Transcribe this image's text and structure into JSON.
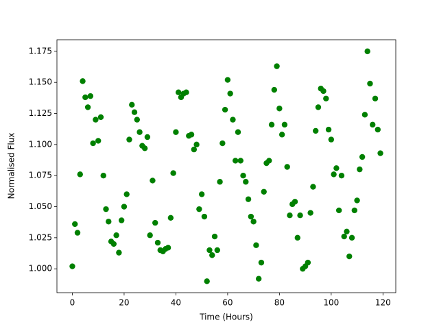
{
  "chart_data": {
    "type": "scatter",
    "x_label": "Time (Hours)",
    "y_label": "Normalised Flux",
    "color": "#008000",
    "grid": false,
    "xlim": [
      -5.95,
      124.95
    ],
    "ylim": [
      0.9808,
      1.1843
    ],
    "xticks": [
      0,
      20,
      40,
      60,
      80,
      100,
      120
    ],
    "yticks": [
      {
        "value": 1.0,
        "label": "1.000"
      },
      1.025,
      {
        "value": 1.05,
        "label": "1.050"
      },
      1.075,
      {
        "value": 1.1,
        "label": "1.100"
      },
      1.125,
      {
        "value": 1.15,
        "label": "1.150"
      },
      1.175
    ],
    "x": [
      0,
      1,
      2,
      3,
      4,
      5,
      6,
      7,
      8,
      9,
      10,
      11,
      12,
      13,
      14,
      15,
      16,
      17,
      18,
      19,
      20,
      21,
      22,
      23,
      24,
      25,
      26,
      27,
      28,
      29,
      30,
      31,
      32,
      33,
      34,
      35,
      36,
      37,
      38,
      39,
      40,
      41,
      42,
      43,
      44,
      45,
      46,
      47,
      48,
      49,
      50,
      51,
      52,
      53,
      54,
      55,
      56,
      57,
      58,
      59,
      60,
      61,
      62,
      63,
      64,
      65,
      66,
      67,
      68,
      69,
      70,
      71,
      72,
      73,
      74,
      75,
      76,
      77,
      78,
      79,
      80,
      81,
      82,
      83,
      84,
      85,
      86,
      87,
      88,
      89,
      90,
      91,
      92,
      93,
      94,
      95,
      96,
      97,
      98,
      99,
      100,
      101,
      102,
      103,
      104,
      105,
      106,
      107,
      108,
      109,
      110,
      111,
      112,
      113,
      114,
      115,
      116,
      117,
      118,
      119
    ],
    "values": [
      1.002,
      1.036,
      1.029,
      1.076,
      1.151,
      1.138,
      1.13,
      1.139,
      1.101,
      1.12,
      1.103,
      1.122,
      1.075,
      1.048,
      1.038,
      1.022,
      1.02,
      1.027,
      1.013,
      1.039,
      1.05,
      1.06,
      1.104,
      1.132,
      1.126,
      1.12,
      1.11,
      1.099,
      1.097,
      1.106,
      1.027,
      1.071,
      1.037,
      1.021,
      1.015,
      1.014,
      1.016,
      1.017,
      1.041,
      1.077,
      1.11,
      1.142,
      1.138,
      1.141,
      1.142,
      1.107,
      1.108,
      1.096,
      1.1,
      1.048,
      1.06,
      1.042,
      0.99,
      1.015,
      1.011,
      1.026,
      1.015,
      1.07,
      1.101,
      1.128,
      1.152,
      1.141,
      1.12,
      1.087,
      1.11,
      1.087,
      1.075,
      1.07,
      1.056,
      1.042,
      1.038,
      1.019,
      0.992,
      1.005,
      1.062,
      1.085,
      1.087,
      1.116,
      1.144,
      1.163,
      1.129,
      1.108,
      1.116,
      1.082,
      1.043,
      1.052,
      1.054,
      1.025,
      1.043,
      1.0,
      1.002,
      1.005,
      1.045,
      1.066,
      1.111,
      1.13,
      1.145,
      1.143,
      1.137,
      1.112,
      1.104,
      1.076,
      1.081,
      1.047,
      1.075,
      1.026,
      1.03,
      1.01,
      1.025,
      1.047,
      1.055,
      1.08,
      1.09,
      1.124,
      1.175,
      1.149,
      1.116,
      1.137,
      1.112,
      1.093
    ]
  }
}
